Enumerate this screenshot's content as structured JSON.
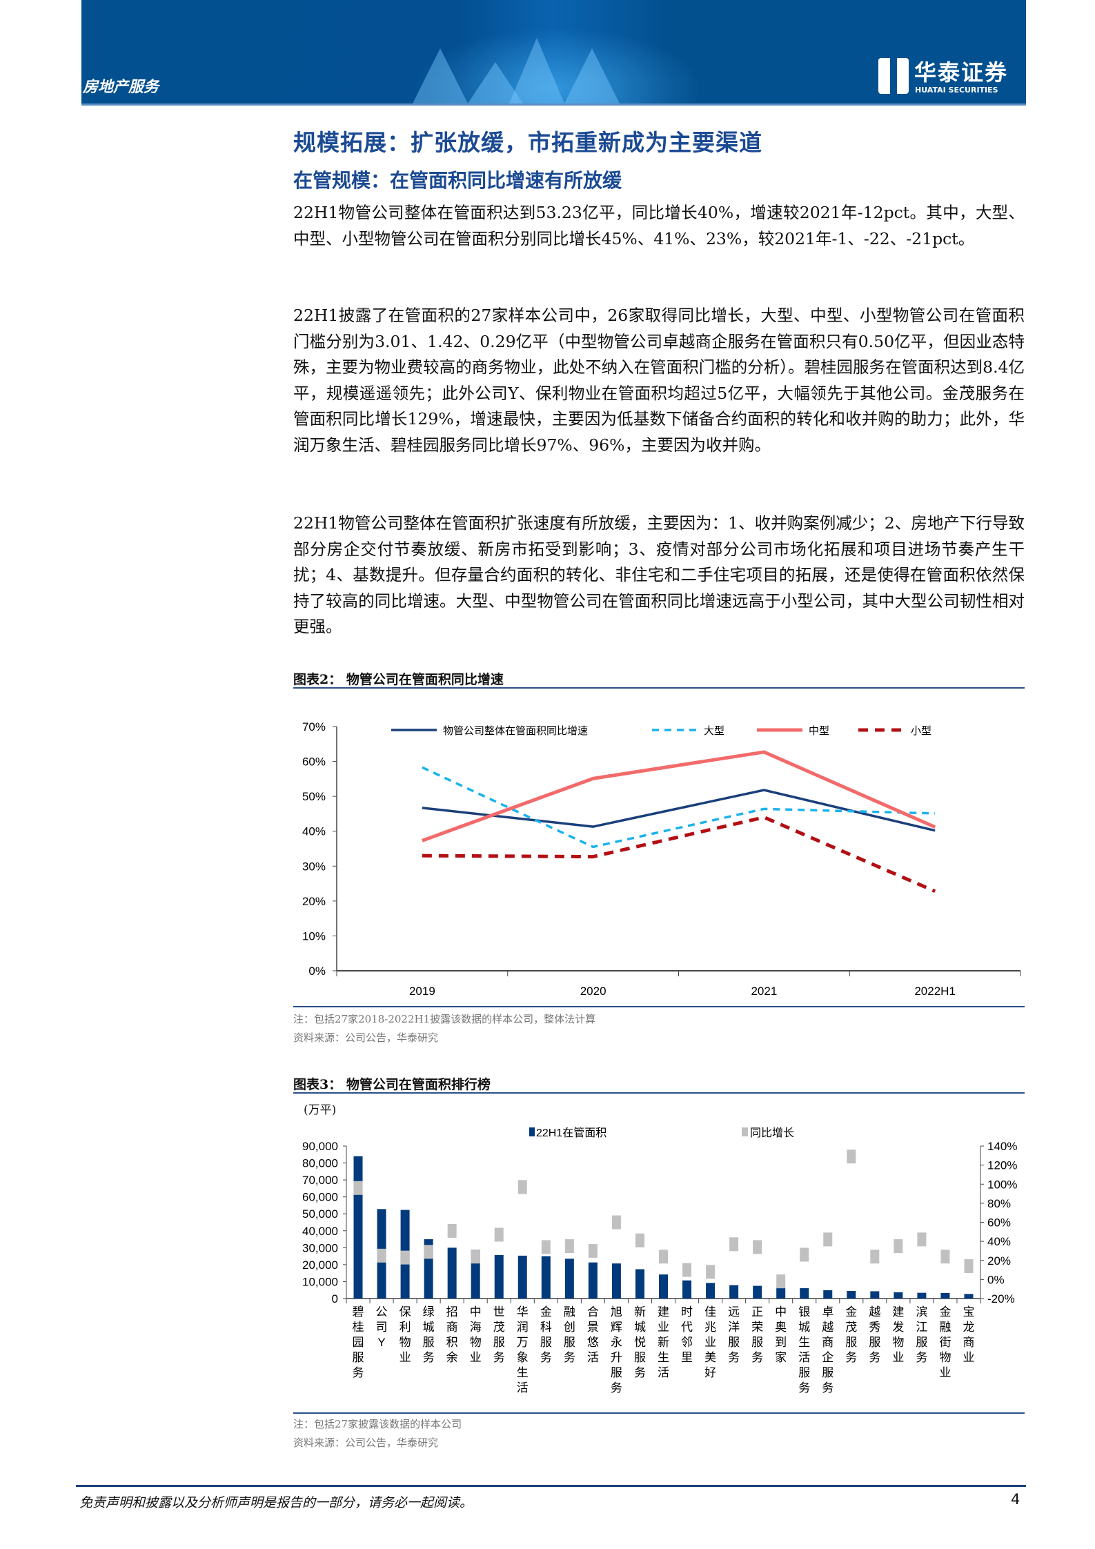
{
  "header": {
    "section": "房地产服务",
    "logo_cn": "华泰证券",
    "logo_en": "HUATAI SECURITIES",
    "brand_color": "#02508f"
  },
  "title": "规模拓展：扩张放缓，市拓重新成为主要渠道",
  "subtitle": "在管规模：在管面积同比增速有所放缓",
  "paragraphs": [
    "22H1物管公司整体在管面积达到53.23亿平，同比增长40%，增速较2021年-12pct。其中，大型、中型、小型物管公司在管面积分别同比增长45%、41%、23%，较2021年-1、-22、-21pct。",
    "22H1披露了在管面积的27家样本公司中，26家取得同比增长，大型、中型、小型物管公司在管面积门槛分别为3.01、1.42、0.29亿平（中型物管公司卓越商企服务在管面积只有0.50亿平，但因业态特殊，主要为物业费较高的商务物业，此处不纳入在管面积门槛的分析）。碧桂园服务在管面积达到8.4亿平，规模遥遥领先；此外公司Y、保利物业在管面积均超过5亿平，大幅领先于其他公司。金茂服务在管面积同比增长129%，增速最快，主要因为低基数下储备合约面积的转化和收并购的助力；此外，华润万象生活、碧桂园服务同比增长97%、96%，主要因为收并购。",
    "22H1物管公司整体在管面积扩张速度有所放缓，主要因为：1、收并购案例减少；2、房地产下行导致部分房企交付节奏放缓、新房市拓受到影响；3、疫情对部分公司市场化拓展和项目进场节奏产生干扰；4、基数提升。但存量合约面积的转化、非住宅和二手住宅项目的拓展，还是使得在管面积依然保持了较高的同比增速。大型、中型物管公司在管面积同比增速远高于小型公司，其中大型公司韧性相对更强。"
  ],
  "figure2": {
    "title": "图表2：  物管公司在管面积同比增速",
    "note": "注：包括27家2018-2022H1披露该数据的样本公司，整体法计算",
    "source": "资料来源：公司公告，华泰研究"
  },
  "figure3": {
    "title": "图表3：  物管公司在管面积排行榜",
    "unit": "(万平)",
    "note": "注：包括27家披露该数据的样本公司",
    "source": "资料来源：公司公告，华泰研究"
  },
  "chart_data": [
    {
      "type": "line",
      "categories": [
        "2019",
        "2020",
        "2021",
        "2022H1"
      ],
      "ylim": [
        0,
        70
      ],
      "yticks": [
        "0%",
        "10%",
        "20%",
        "30%",
        "40%",
        "50%",
        "60%",
        "70%"
      ],
      "legend": "top",
      "series": [
        {
          "name": "物管公司整体在管面积同比增速",
          "values": [
            46.7,
            41.3,
            51.8,
            40.2
          ],
          "color": "#1a3f7a",
          "style": "solid"
        },
        {
          "name": "大型",
          "values": [
            58.3,
            35.5,
            46.4,
            45.1
          ],
          "color": "#1ab2ec",
          "style": "dashed"
        },
        {
          "name": "中型",
          "values": [
            37.3,
            55.1,
            62.7,
            41.2
          ],
          "color": "#f36a6a",
          "style": "solid"
        },
        {
          "name": "小型",
          "values": [
            33.0,
            32.7,
            44.0,
            22.8
          ],
          "color": "#b30f13",
          "style": "dashed"
        }
      ]
    },
    {
      "type": "bar",
      "categories": [
        "碧桂园服务",
        "公司Y",
        "保利物业",
        "绿城服务",
        "招商积余",
        "中海物业",
        "世茂服务",
        "华润万象生活",
        "金科服务",
        "融创服务",
        "合景悠活",
        "旭辉永升服务",
        "新城悦服务",
        "建业新生活",
        "时代邻里",
        "佳兆业美好",
        "远洋服务",
        "正荣服务",
        "中奥到家",
        "银城生活服务",
        "卓越商企服务",
        "金茂服务",
        "越秀服务",
        "建发物业",
        "滨江服务",
        "金融街物业",
        "宝龙商业"
      ],
      "ylim": [
        0,
        90000
      ],
      "yticks": [
        "0",
        "10,000",
        "20,000",
        "30,000",
        "40,000",
        "50,000",
        "60,000",
        "70,000",
        "80,000",
        "90,000"
      ],
      "y2lim": [
        -20,
        140
      ],
      "y2ticks": [
        "-20%",
        "0%",
        "20%",
        "40%",
        "60%",
        "80%",
        "100%",
        "120%",
        "140%"
      ],
      "series": [
        {
          "name": "22H1在管面积",
          "axis": "left",
          "color": "#023a7c",
          "values": [
            84000,
            52800,
            52300,
            35000,
            30000,
            28800,
            25700,
            25300,
            25000,
            23500,
            21300,
            20700,
            17300,
            14200,
            10700,
            9200,
            7900,
            7500,
            6700,
            6100,
            4900,
            4500,
            4300,
            3700,
            3400,
            3300,
            2700
          ]
        },
        {
          "name": "同比增长",
          "axis": "right",
          "color": "#c0c0c0",
          "values": [
            96,
            25,
            23,
            29,
            51,
            24,
            47,
            97,
            34,
            35,
            30,
            60,
            41,
            24,
            10,
            8,
            37,
            34,
            -2,
            26,
            42,
            129,
            24,
            35,
            42,
            24,
            14
          ]
        }
      ]
    }
  ],
  "footer": {
    "disclaimer": "免责声明和披露以及分析师声明是报告的一部分，请务必一起阅读。",
    "page": "4"
  }
}
